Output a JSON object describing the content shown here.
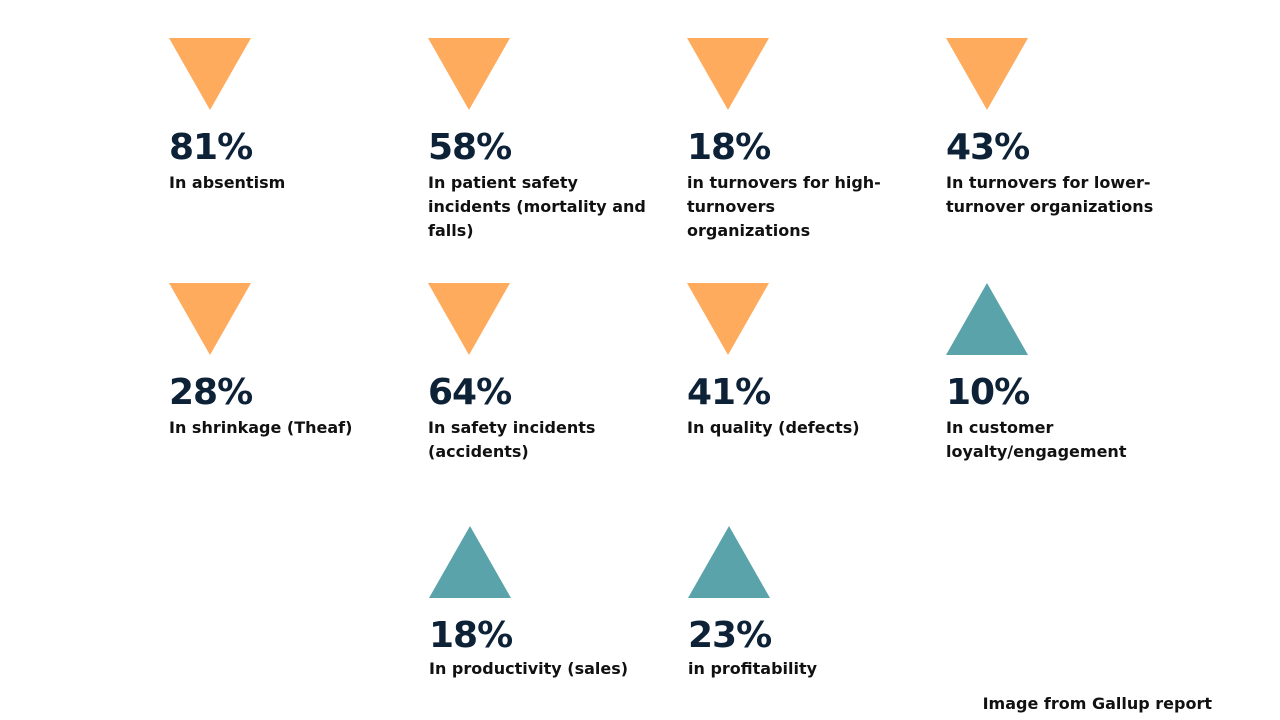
{
  "colors": {
    "decrease_arrow": "#ffab5e",
    "increase_arrow": "#5ba3aa",
    "percent_text": "#0d2137",
    "label_text": "#111111",
    "background": "#ffffff"
  },
  "stats": [
    {
      "percent": "81%",
      "label": "In absentism",
      "direction": "down",
      "icon": "down-triangle-icon"
    },
    {
      "percent": "58%",
      "label": "In patient safety incidents (mortality and falls)",
      "direction": "down",
      "icon": "down-triangle-icon"
    },
    {
      "percent": "18%",
      "label": "in turnovers for high-turnovers organizations",
      "direction": "down",
      "icon": "down-triangle-icon"
    },
    {
      "percent": "43%",
      "label": "In turnovers for lower-turnover organizations",
      "direction": "down",
      "icon": "down-triangle-icon"
    },
    {
      "percent": "28%",
      "label": "In shrinkage (Theaf)",
      "direction": "down",
      "icon": "down-triangle-icon"
    },
    {
      "percent": "64%",
      "label": "In safety incidents (accidents)",
      "direction": "down",
      "icon": "down-triangle-icon"
    },
    {
      "percent": "41%",
      "label": "In quality (defects)",
      "direction": "down",
      "icon": "down-triangle-icon"
    },
    {
      "percent": "10%",
      "label": "In customer loyalty/engagement",
      "direction": "up",
      "icon": "up-triangle-icon"
    },
    {
      "percent": "18%",
      "label": "In productivity (sales)",
      "direction": "up",
      "icon": "up-triangle-icon"
    },
    {
      "percent": "23%",
      "label": "in profitability",
      "direction": "up",
      "icon": "up-triangle-icon"
    }
  ],
  "credit": "Image from Gallup report"
}
